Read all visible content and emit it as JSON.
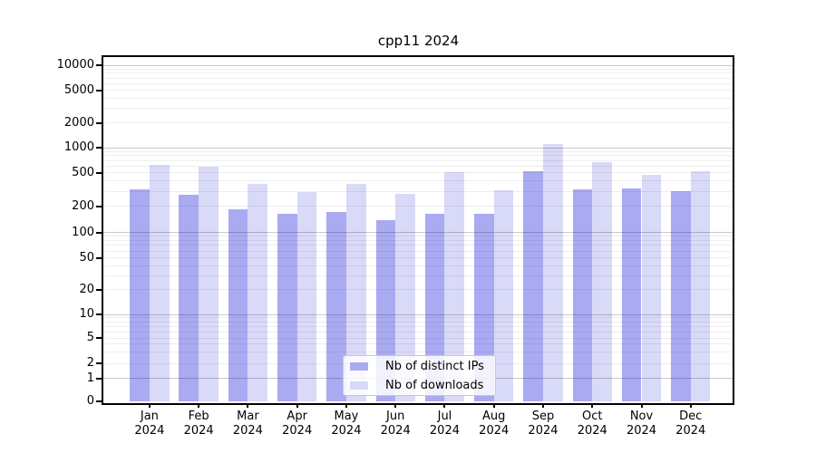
{
  "chart_data": {
    "type": "bar",
    "title": "cpp11 2024",
    "yscale": "symlog",
    "grid": true,
    "legend_position": "lower center",
    "months": [
      "Jan",
      "Feb",
      "Mar",
      "Apr",
      "May",
      "Jun",
      "Jul",
      "Aug",
      "Sep",
      "Oct",
      "Nov",
      "Dec"
    ],
    "year": "2024",
    "categories": [
      "Jan 2024",
      "Feb 2024",
      "Mar 2024",
      "Apr 2024",
      "May 2024",
      "Jun 2024",
      "Jul 2024",
      "Aug 2024",
      "Sep 2024",
      "Oct 2024",
      "Nov 2024",
      "Dec 2024"
    ],
    "series": [
      {
        "name": "Nb of distinct IPs",
        "color": "#aaaaf3",
        "values": [
          320,
          275,
          185,
          163,
          170,
          138,
          162,
          163,
          515,
          314,
          327,
          303
        ]
      },
      {
        "name": "Nb of downloads",
        "color": "#d9d9f8",
        "values": [
          625,
          590,
          365,
          296,
          364,
          278,
          505,
          308,
          1105,
          668,
          473,
          520
        ]
      }
    ],
    "y_ticks": [
      {
        "value": 0,
        "label": "0"
      },
      {
        "value": 1,
        "label": "1"
      },
      {
        "value": 2,
        "label": "2"
      },
      {
        "value": 5,
        "label": "5"
      },
      {
        "value": 10,
        "label": "10"
      },
      {
        "value": 20,
        "label": "20"
      },
      {
        "value": 50,
        "label": "50"
      },
      {
        "value": 100,
        "label": "100"
      },
      {
        "value": 200,
        "label": "200"
      },
      {
        "value": 500,
        "label": "500"
      },
      {
        "value": 1000,
        "label": "1000"
      },
      {
        "value": 2000,
        "label": "2000"
      },
      {
        "value": 5000,
        "label": "5000"
      },
      {
        "value": 10000,
        "label": "10000"
      }
    ],
    "ylim": [
      0,
      13000
    ],
    "colors": {
      "axis": "#000000",
      "grid_major": "#c9c9c9",
      "grid_minor": "#ededed",
      "background": "#ffffff"
    }
  }
}
